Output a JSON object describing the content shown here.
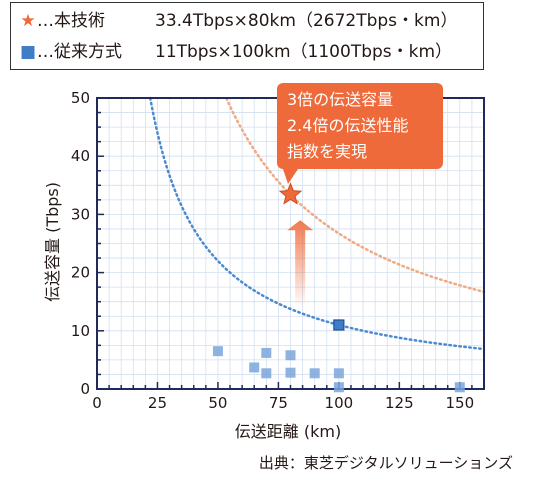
{
  "legend": {
    "items": [
      {
        "symbol": "★",
        "label": "…本技術",
        "value": "33.4Tbps×80km（2672Tbps・km）",
        "color": "#ef6a3b"
      },
      {
        "symbol": "■",
        "label": "…従来方式",
        "value": "11Tbps×100km（1100Tbps・km）",
        "color": "#3f7ec7"
      }
    ]
  },
  "callout": {
    "lines": [
      "3倍の伝送容量",
      "2.4倍の伝送性能",
      "指数を実現"
    ],
    "color": "#ef6a3b"
  },
  "source": "出典：東芝デジタルソリューションズ",
  "chart_data": {
    "type": "scatter",
    "xlabel": "伝送距離 (km)",
    "ylabel": "伝送容量 (Tbps)",
    "xlim": [
      0,
      160
    ],
    "ylim": [
      0,
      50
    ],
    "xticks": [
      0,
      25,
      50,
      75,
      100,
      125,
      150
    ],
    "yticks": [
      0,
      10,
      20,
      30,
      40,
      50
    ],
    "grid": true,
    "series": [
      {
        "name": "本技術",
        "marker": "star",
        "color": "#ef6a3b",
        "points": [
          [
            80,
            33.4
          ]
        ]
      },
      {
        "name": "従来方式",
        "marker": "square",
        "color": "#3f7ec7",
        "points": [
          [
            100,
            11
          ]
        ]
      },
      {
        "marker": "square-light",
        "color": "#7aa6dc",
        "points": [
          [
            50,
            6.5
          ],
          [
            65,
            3.7
          ],
          [
            70,
            6.2
          ],
          [
            70,
            2.7
          ],
          [
            80,
            5.8
          ],
          [
            80,
            2.8
          ],
          [
            90,
            2.7
          ],
          [
            100,
            2.7
          ],
          [
            100,
            0.3
          ],
          [
            150,
            0.3
          ]
        ]
      }
    ],
    "curves": [
      {
        "product": 2672,
        "color": "#f0a982",
        "x_start": 53
      },
      {
        "product": 1100,
        "color": "#4c8ad0",
        "x_start": 22
      }
    ],
    "arrow": {
      "x": 84,
      "from_y": 14,
      "to_y": 29
    }
  }
}
